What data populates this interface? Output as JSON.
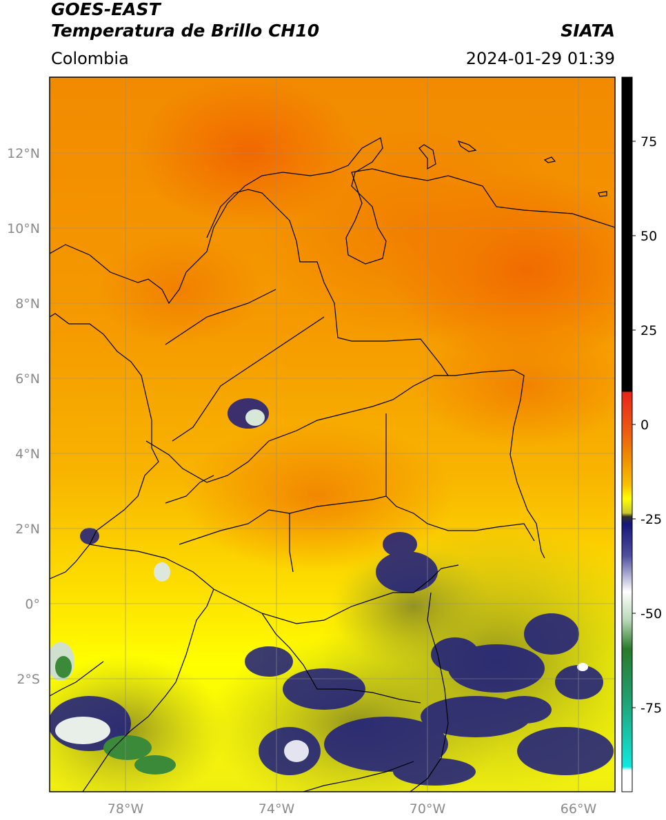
{
  "header": {
    "satellite": "GOES-EAST",
    "product": "Temperatura de Brillo CH10",
    "organization": "SIATA",
    "region": "Colombia",
    "timestamp": "2024-01-29 01:39"
  },
  "map": {
    "lon_range": [
      -80,
      -65
    ],
    "lat_range": [
      -5,
      14
    ],
    "lat_ticks": [
      "12°N",
      "10°N",
      "8°N",
      "6°N",
      "4°N",
      "2°N",
      "0°",
      "2°S"
    ],
    "lon_ticks": [
      "78°W",
      "74°W",
      "70°W",
      "66°W"
    ]
  },
  "colorbar": {
    "ticks": [
      "75",
      "50",
      "25",
      "0",
      "-25",
      "-50",
      "-75"
    ],
    "colors": {
      "black": "#000000",
      "red": "#e8231a",
      "orange": "#f08a00",
      "yellow": "#ffff00",
      "olive": "#9a9a2a",
      "navy": "#15157a",
      "white": "#ffffff",
      "green": "#2a7a2a",
      "cyan": "#10d8d0"
    }
  }
}
